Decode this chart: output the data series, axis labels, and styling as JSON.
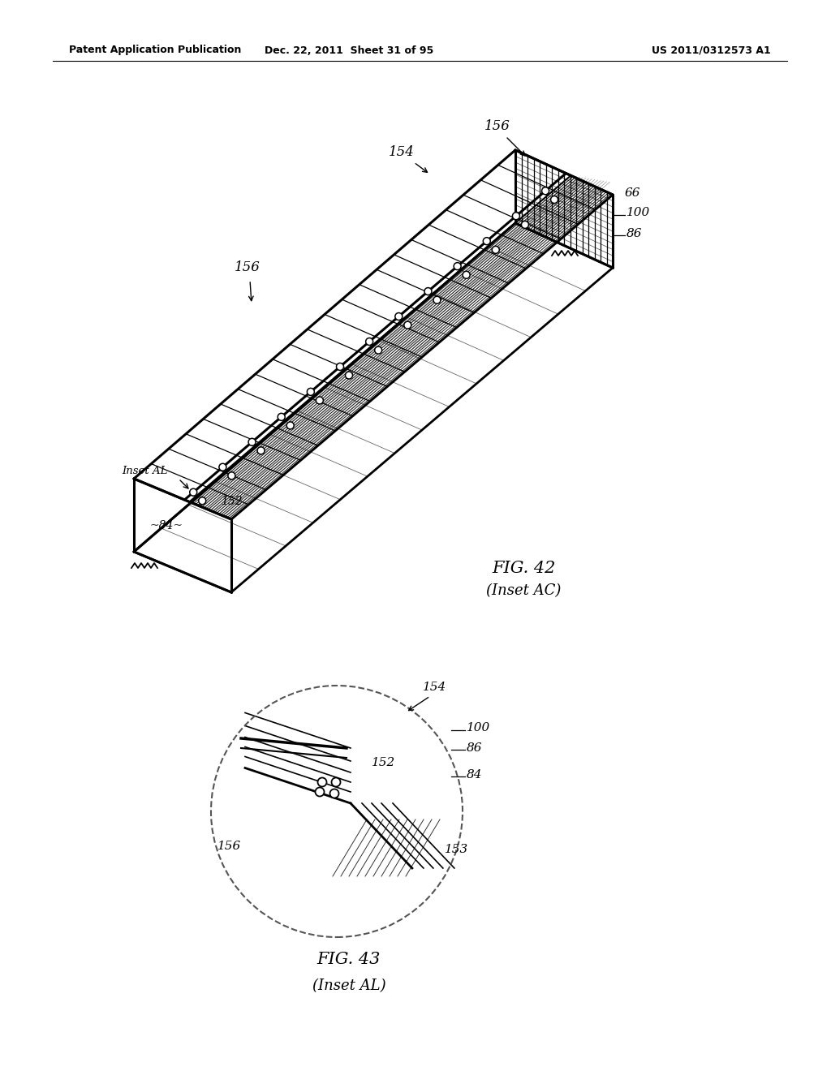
{
  "header_left": "Patent Application Publication",
  "header_mid": "Dec. 22, 2011  Sheet 31 of 95",
  "header_right": "US 2011/0312573 A1",
  "fig42_title": "FIG. 42",
  "fig42_subtitle": "(Inset AC)",
  "fig43_title": "FIG. 43",
  "fig43_subtitle": "(Inset AL)",
  "bg_color": "#ffffff",
  "line_color": "#000000"
}
